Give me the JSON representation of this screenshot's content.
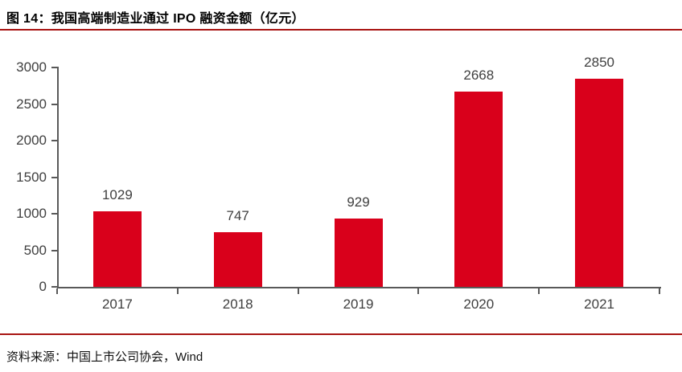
{
  "figure": {
    "title": "图 14：我国高端制造业通过 IPO 融资金额（亿元）",
    "source": "资料来源：中国上市公司协会，Wind"
  },
  "colors": {
    "bar": "#D9001B",
    "rule": "#A81412",
    "axis": "#595959",
    "label": "#404040"
  },
  "chart_data": {
    "type": "bar",
    "categories": [
      "2017",
      "2018",
      "2019",
      "2020",
      "2021"
    ],
    "values": [
      1029,
      747,
      929,
      2668,
      2850
    ],
    "title": "我国高端制造业通过 IPO 融资金额（亿元）",
    "xlabel": "",
    "ylabel": "",
    "ylim": [
      0,
      3000
    ],
    "yticks": [
      0,
      500,
      1000,
      1500,
      2000,
      2500,
      3000
    ],
    "grid": false,
    "legend": "none",
    "data_labels": true
  }
}
